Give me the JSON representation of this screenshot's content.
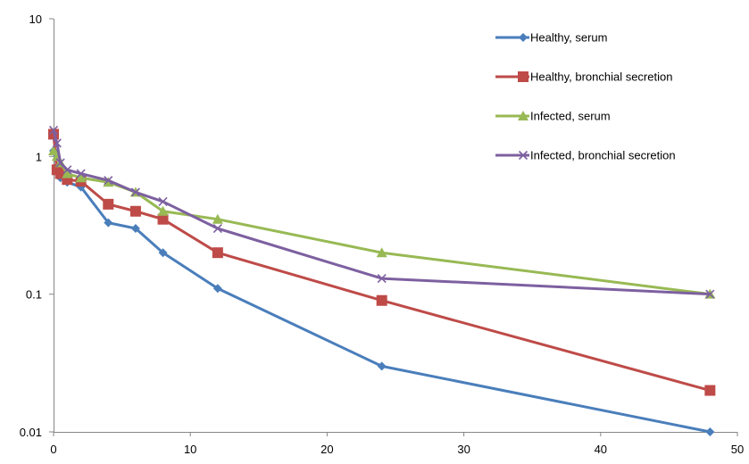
{
  "chart_data": {
    "type": "line",
    "title": "",
    "xlabel": "",
    "ylabel": "",
    "xlim": [
      0,
      50
    ],
    "ylim": [
      0.01,
      10
    ],
    "yscale": "log",
    "x_ticks": [
      "0",
      "10",
      "20",
      "30",
      "40",
      "50"
    ],
    "y_ticks": [
      "0.01",
      "0.1",
      "1",
      "10"
    ],
    "grid": false,
    "legend_position": "top-right",
    "series": [
      {
        "name": "Healthy, serum",
        "color": "#4a7ebb",
        "marker": "diamond",
        "x": [
          0,
          0.25,
          0.5,
          1,
          2,
          4,
          6,
          8,
          12,
          24,
          48
        ],
        "y": [
          1.1,
          0.85,
          0.7,
          0.65,
          0.6,
          0.33,
          0.3,
          0.2,
          0.11,
          0.03,
          0.01
        ]
      },
      {
        "name": "Healthy, bronchial secretion",
        "color": "#be4b48",
        "marker": "square",
        "x": [
          0,
          0.25,
          0.5,
          1,
          2,
          4,
          6,
          8,
          12,
          24,
          48
        ],
        "y": [
          1.45,
          0.8,
          0.75,
          0.68,
          0.66,
          0.45,
          0.4,
          0.35,
          0.2,
          0.09,
          0.02
        ]
      },
      {
        "name": "Infected, serum",
        "color": "#98b954",
        "marker": "triangle",
        "x": [
          0,
          0.25,
          0.5,
          1,
          2,
          4,
          6,
          8,
          12,
          24,
          48
        ],
        "y": [
          1.1,
          1.0,
          0.9,
          0.75,
          0.7,
          0.65,
          0.55,
          0.4,
          0.35,
          0.2,
          0.1
        ]
      },
      {
        "name": "Infected, bronchial secretion",
        "color": "#7d60a0",
        "marker": "x",
        "x": [
          0,
          0.25,
          0.5,
          1,
          2,
          4,
          6,
          8,
          12,
          24,
          48
        ],
        "y": [
          1.55,
          1.25,
          0.9,
          0.8,
          0.75,
          0.67,
          0.55,
          0.47,
          0.3,
          0.13,
          0.1
        ]
      }
    ]
  }
}
